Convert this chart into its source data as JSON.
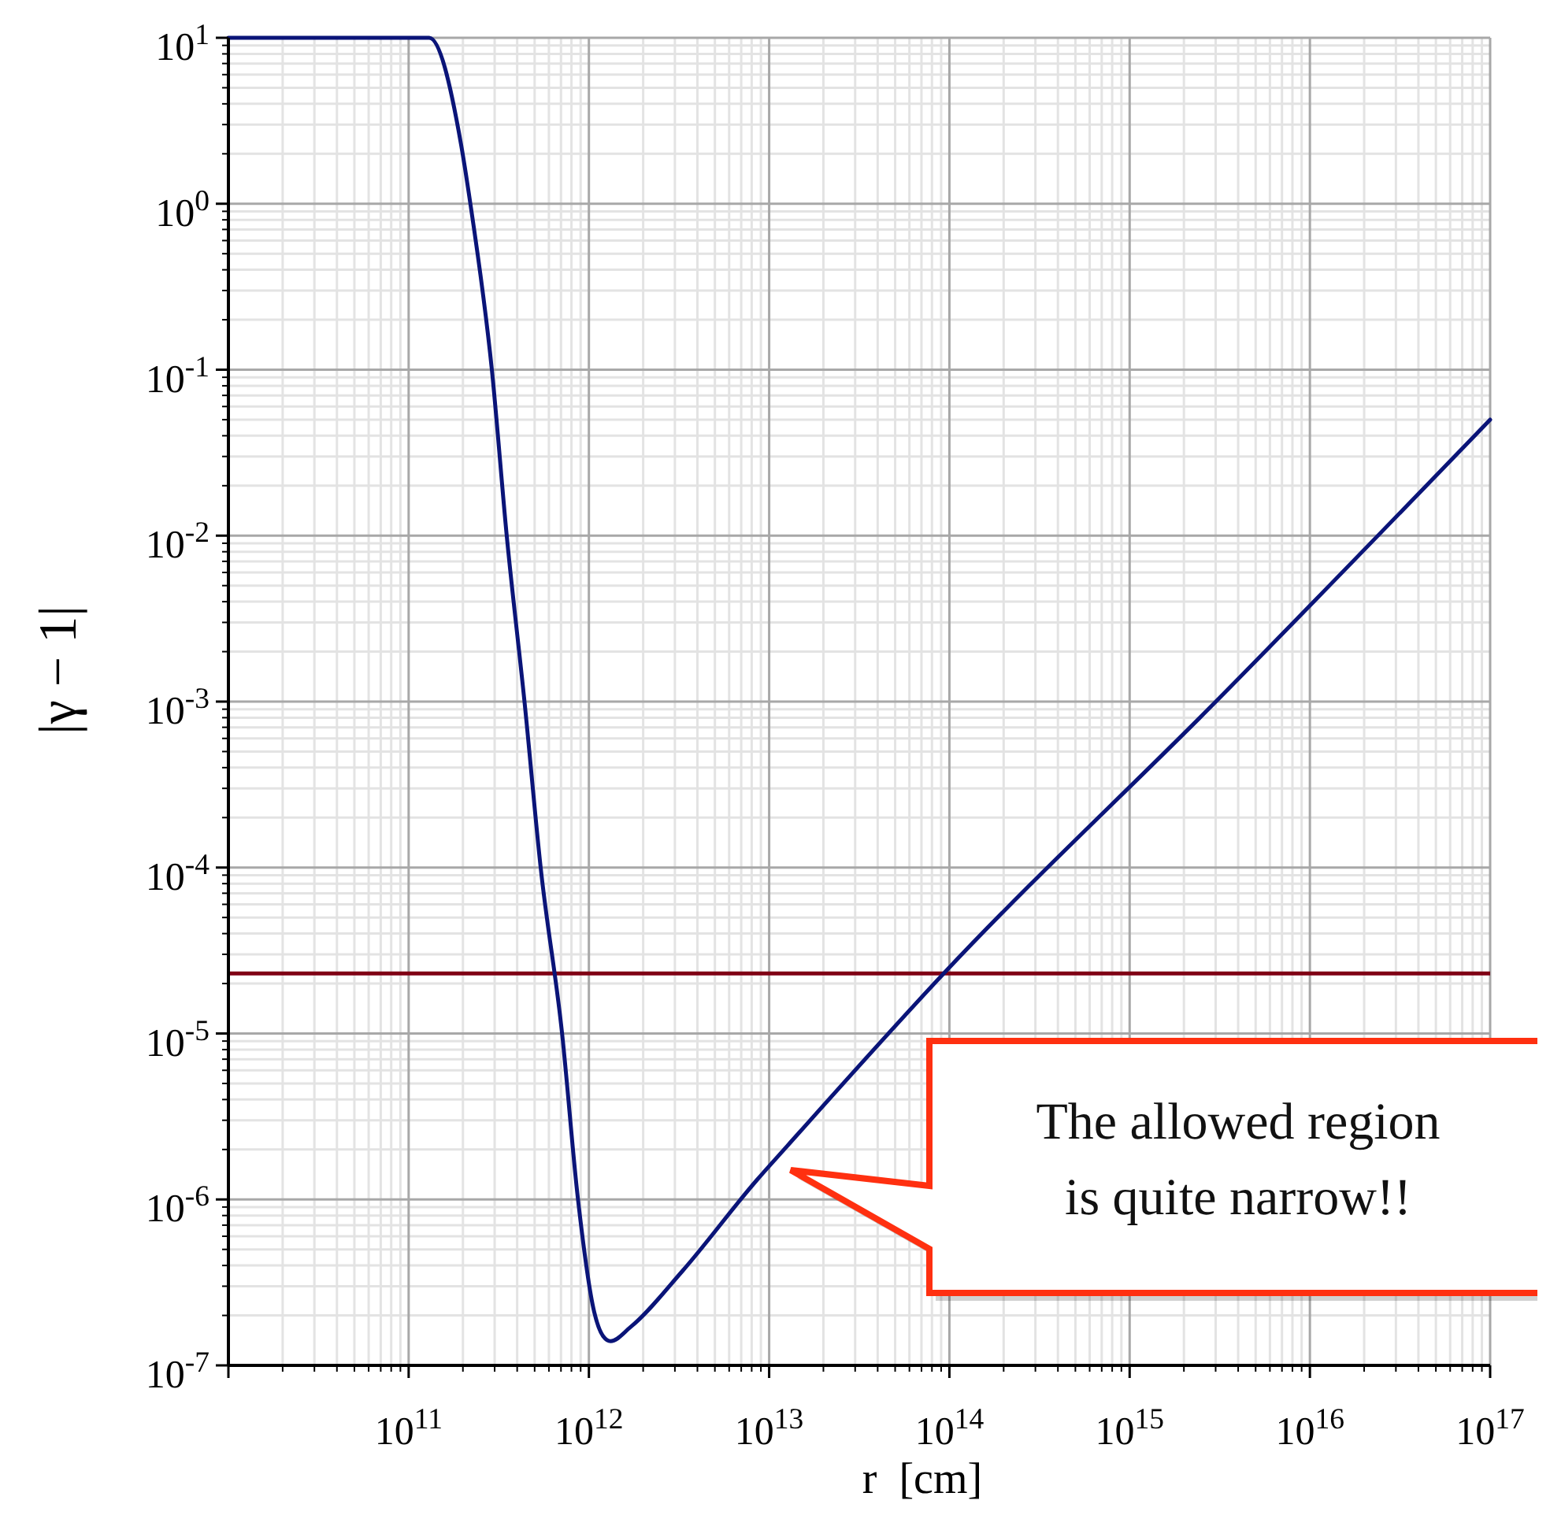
{
  "chart_data": {
    "type": "line",
    "xlabel": "r  [cm]",
    "ylabel": "|γ − 1|",
    "log": "xy",
    "grid": true,
    "xlim": [
      10000000000.0,
      1e+17
    ],
    "ylim": [
      1e-07,
      10
    ],
    "xticks": [
      {
        "value": 100000000000.0,
        "label": "10$^{11}$"
      },
      {
        "value": 1000000000000.0,
        "label": "10$^{12}$"
      },
      {
        "value": 10000000000000.0,
        "label": "10$^{13}$"
      },
      {
        "value": 100000000000000.0,
        "label": "10$^{14}$"
      },
      {
        "value": 1000000000000000.0,
        "label": "10$^{15}$"
      },
      {
        "value": 1e+16,
        "label": "10$^{16}$"
      },
      {
        "value": 1e+17,
        "label": "10$^{17}$"
      }
    ],
    "yticks": [
      {
        "value": 1e-07,
        "label": "10$^{-7}$"
      },
      {
        "value": 1e-06,
        "label": "10$^{-6}$"
      },
      {
        "value": 1e-05,
        "label": "10$^{-5}$"
      },
      {
        "value": 0.0001,
        "label": "10$^{-4}$"
      },
      {
        "value": 0.001,
        "label": "10$^{-3}$"
      },
      {
        "value": 0.01,
        "label": "10$^{-2}$"
      },
      {
        "value": 0.1,
        "label": "10$^{-1}$"
      },
      {
        "value": 1,
        "label": "10$^{0}$"
      },
      {
        "value": 10,
        "label": "10$^{1}$"
      }
    ],
    "x": [
      10000000000.0,
      100000000000.0,
      130000000000.0,
      195000000000.0,
      220000000000.0,
      290000000000.0,
      350000000000.0,
      440000000000.0,
      540000000000.0,
      710000000000.0,
      870000000000.0,
      1070000000000.0,
      1200000000000.0,
      1320000000000.0,
      1700000000000.0,
      3300000000000.0,
      8500000000000.0,
      12600000000000.0,
      93000000000000.0,
      3200000000000000.0,
      1e+17
    ],
    "series": [
      {
        "color": "#0a1478",
        "values": [
          10,
          10,
          10,
          2.3,
          1.0,
          0.098,
          0.01,
          0.00098,
          0.0001,
          1e-05,
          1e-06,
          2.1e-07,
          1.5e-07,
          1.4e-07,
          1.7e-07,
          3.7e-07,
          1.3e-06,
          2.1e-06,
          2.3e-05,
          0.00107,
          0.05
        ]
      }
    ],
    "ref_lines": [
      {
        "axis": "y",
        "value": 2.3e-05,
        "color": "#800014"
      }
    ],
    "annotations": [
      "The allowed region\nis quite narrow!!"
    ]
  }
}
